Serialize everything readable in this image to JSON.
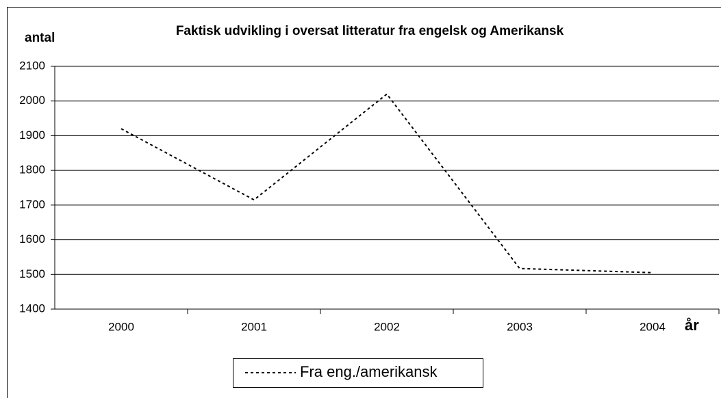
{
  "chart_data": {
    "type": "line",
    "title": "Faktisk udvikling i oversat litteratur fra engelsk og Amerikansk",
    "y_label": "antal",
    "x_label": "år",
    "categories": [
      "2000",
      "2001",
      "2002",
      "2003",
      "2004"
    ],
    "series": [
      {
        "name": "Fra eng./amerikansk",
        "color": "#000000",
        "values": [
          1920,
          1715,
          2020,
          1517,
          1505
        ]
      }
    ],
    "ylim": [
      1400,
      2100
    ],
    "yticks": [
      1400,
      1500,
      1600,
      1700,
      1800,
      1900,
      2000,
      2100
    ],
    "grid": true,
    "legend": "bottom"
  }
}
